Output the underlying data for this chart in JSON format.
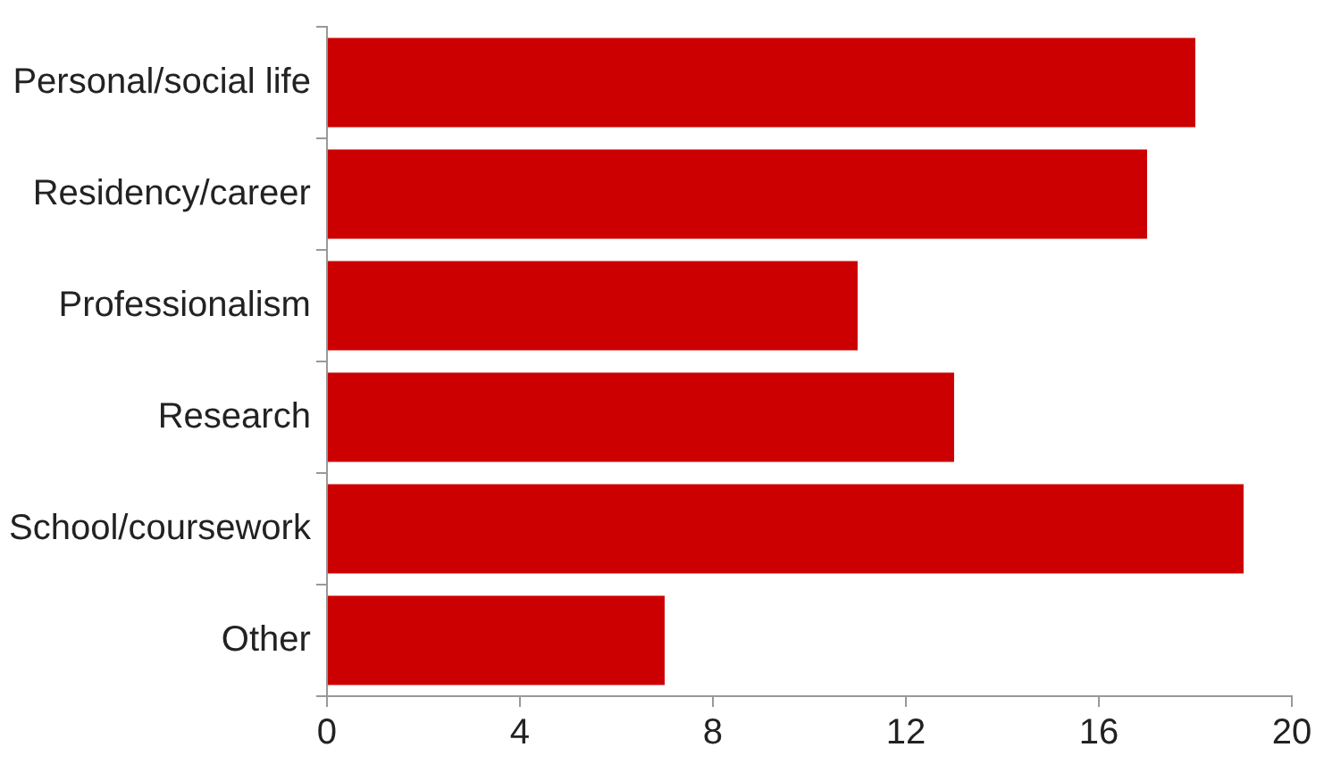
{
  "chart_data": {
    "type": "bar",
    "orientation": "horizontal",
    "categories": [
      "Personal/social life",
      "Residency/career",
      "Professionalism",
      "Research",
      "School/coursework",
      "Other"
    ],
    "values": [
      18,
      17,
      11,
      13,
      19,
      7
    ],
    "color": "#cc0000",
    "xlim": [
      0,
      20
    ],
    "xticks": [
      0,
      4,
      8,
      12,
      16,
      20
    ],
    "grid": false,
    "legend": false
  }
}
